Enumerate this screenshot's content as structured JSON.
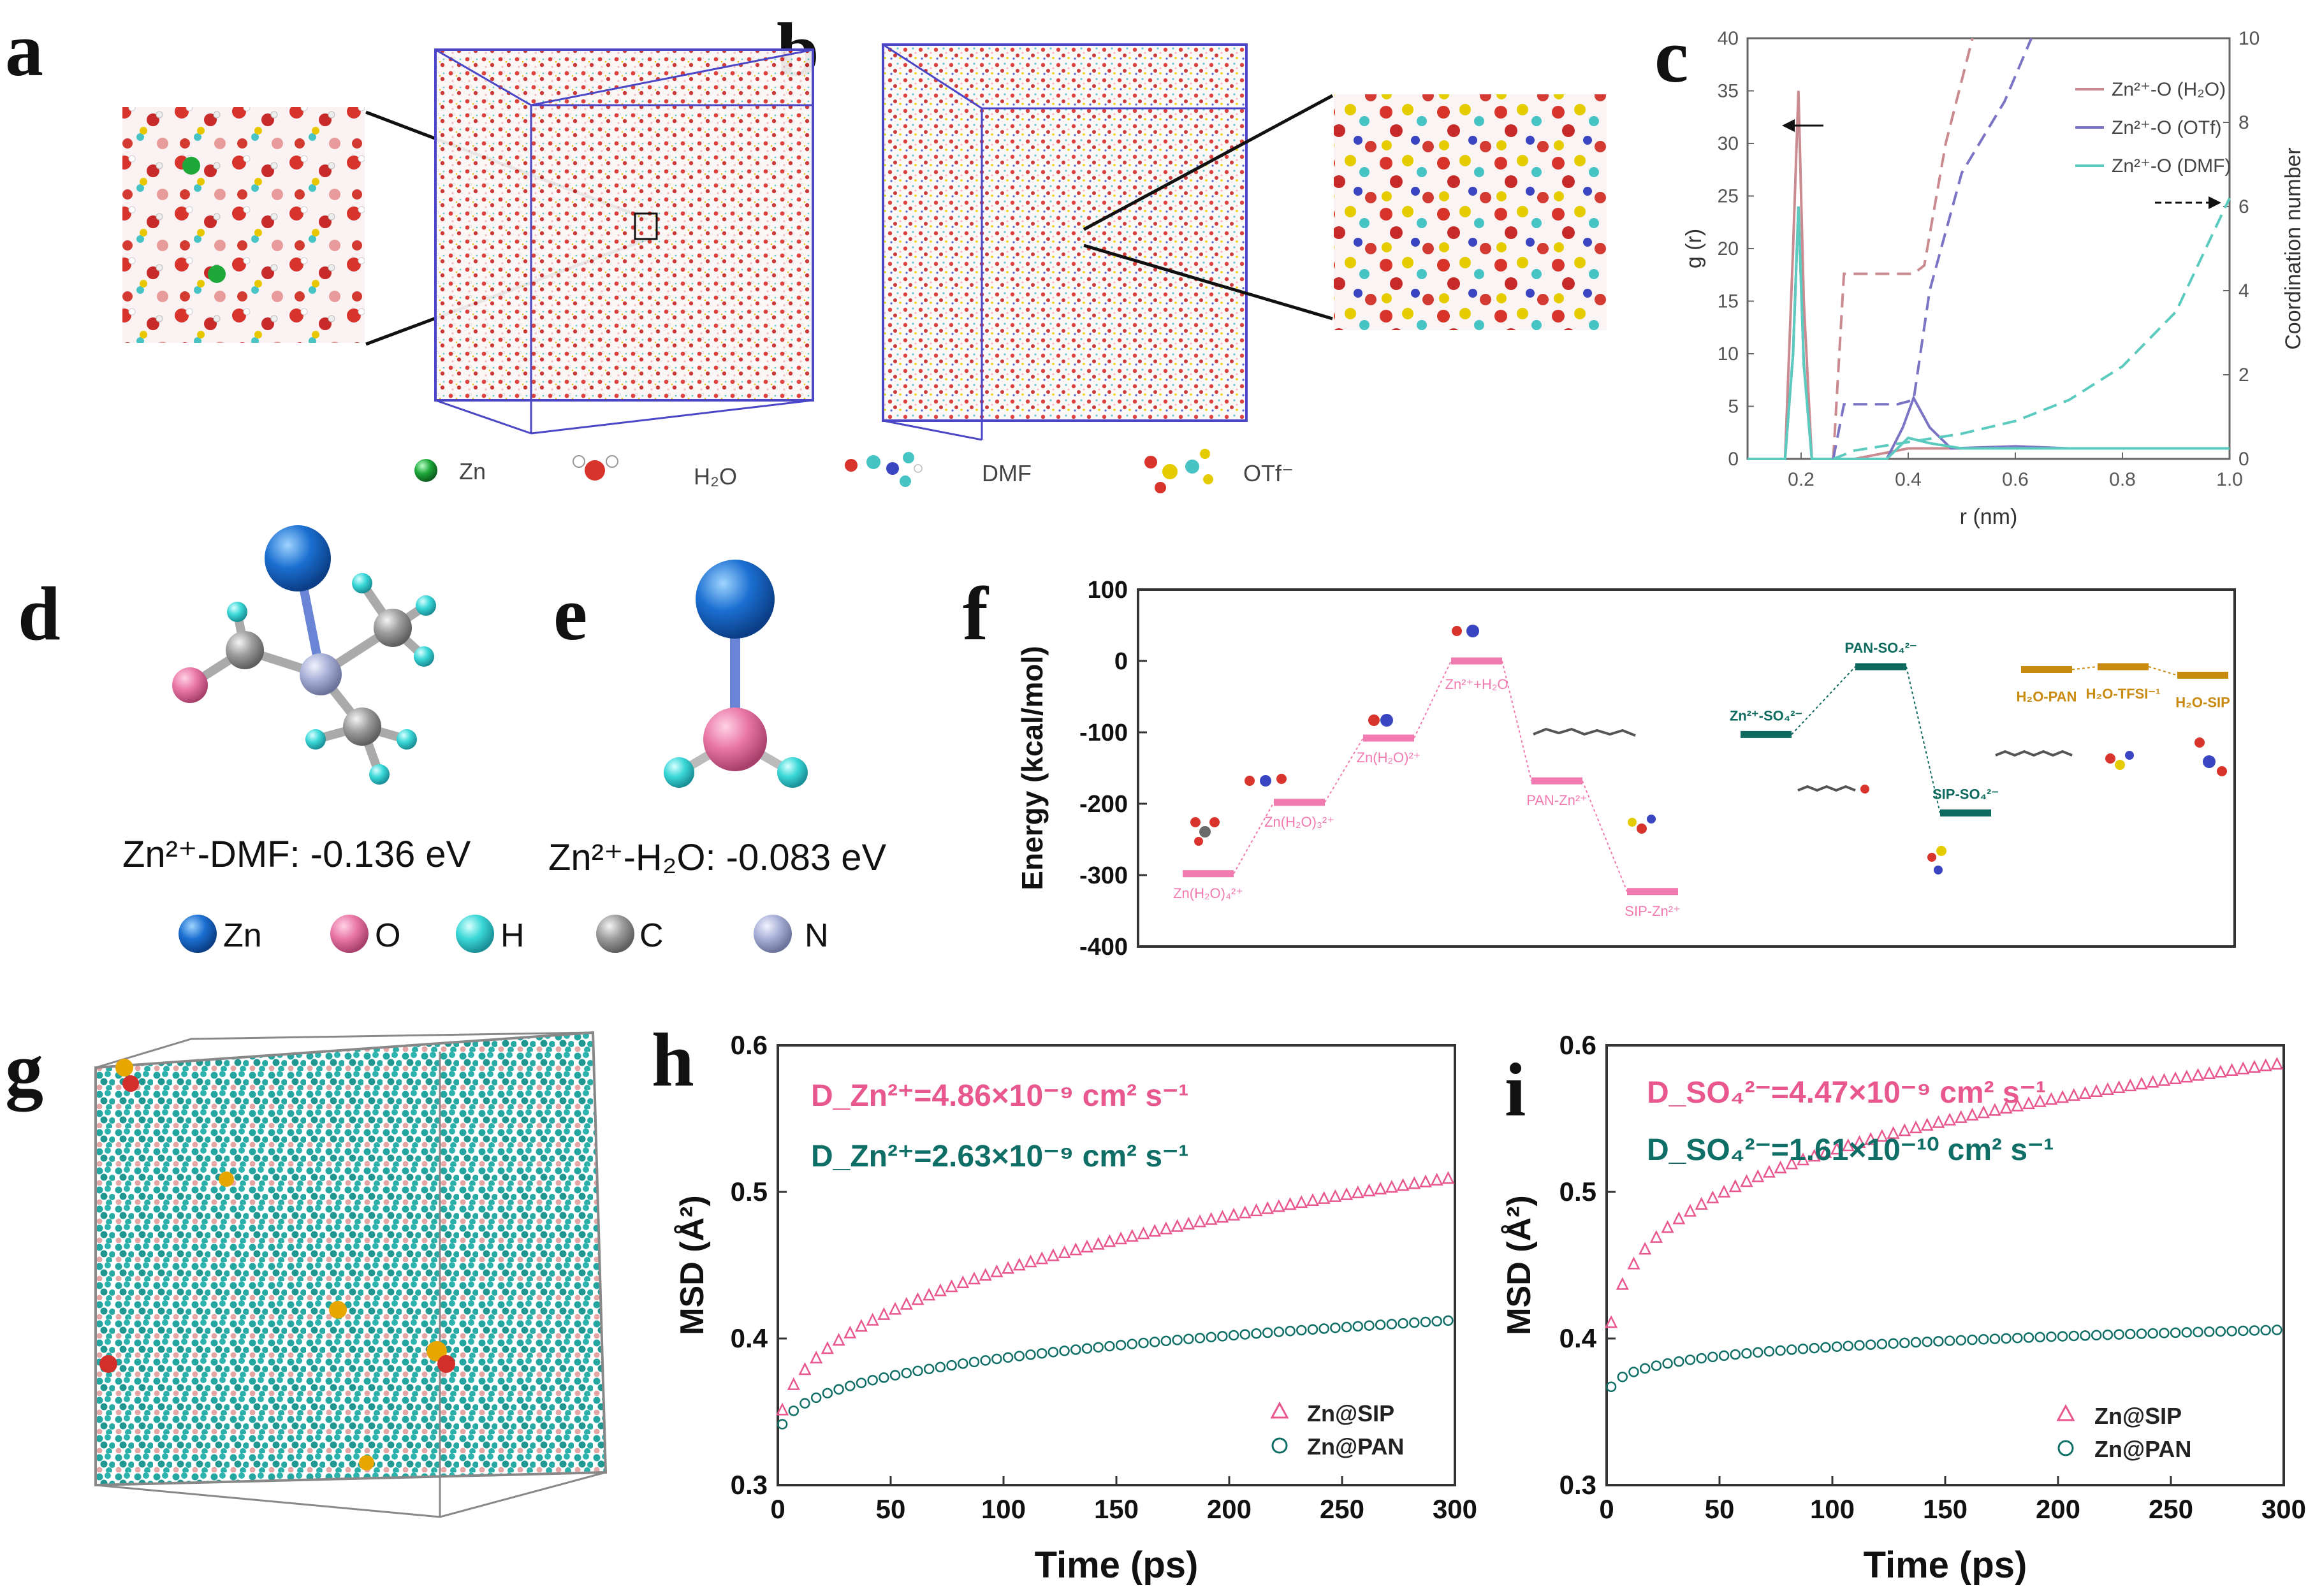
{
  "figure": {
    "panel_labels": [
      "a",
      "b",
      "c",
      "d",
      "e",
      "f",
      "g",
      "h",
      "i"
    ],
    "colors": {
      "pink": "#e8588f",
      "teal": "#0f6e66",
      "c_h2o": "#c98b8f",
      "c_otf": "#7b74c4",
      "c_dmf": "#5ccbbf",
      "energy_pink": "#f17ab0",
      "energy_teal": "#0e6a5e",
      "energy_gold": "#c98a10",
      "zn_blue": "#1b6fd1",
      "o_pink": "#e977a6",
      "h_cyan": "#3ad7d7",
      "c_gray": "#9c9c9c",
      "n_lav": "#a7afd6"
    }
  },
  "legend_ab": {
    "items": [
      {
        "label": "Zn",
        "icon": "zn-sphere-icon"
      },
      {
        "label": "H₂O",
        "icon": "water-molecule-icon"
      },
      {
        "label": "DMF",
        "icon": "dmf-molecule-icon"
      },
      {
        "label": "OTf⁻",
        "icon": "otf-molecule-icon"
      }
    ]
  },
  "panel_d": {
    "caption": "Zn²⁺-DMF: -0.136 eV"
  },
  "panel_e": {
    "caption": "Zn²⁺-H₂O: -0.083 eV"
  },
  "atom_legend": {
    "items": [
      {
        "label": "Zn"
      },
      {
        "label": "O"
      },
      {
        "label": "H"
      },
      {
        "label": "C"
      },
      {
        "label": "N"
      }
    ]
  },
  "chart_data": [
    {
      "id": "c",
      "type": "line",
      "xlabel": "r (nm)",
      "ylabel": "g (r)",
      "y2label": "Coordination number",
      "xlim": [
        0.1,
        1.0
      ],
      "ylim": [
        0,
        40
      ],
      "y2lim": [
        0,
        10
      ],
      "xticks": [
        "0.2",
        "0.4",
        "0.6",
        "0.8",
        "1.0"
      ],
      "yticks": [
        "0",
        "5",
        "10",
        "15",
        "20",
        "25",
        "30",
        "35",
        "40"
      ],
      "y2ticks": [
        "0",
        "2",
        "4",
        "6",
        "8",
        "10"
      ],
      "legend": [
        "Zn²⁺-O (H₂O)",
        "Zn²⁺-O (OTf)",
        "Zn²⁺-O (DMF)"
      ],
      "series": [
        {
          "name": "Zn²⁺-O (H₂O)",
          "axis": "left",
          "x": [
            0.1,
            0.17,
            0.185,
            0.195,
            0.205,
            0.22,
            0.3,
            0.4,
            0.5,
            0.6,
            0.7,
            0.8,
            1.0
          ],
          "y": [
            0,
            0,
            20,
            35,
            15,
            0,
            0,
            1,
            1,
            1,
            1,
            1,
            1
          ]
        },
        {
          "name": "Zn²⁺-O (OTf)",
          "axis": "left",
          "x": [
            0.1,
            0.17,
            0.185,
            0.195,
            0.205,
            0.22,
            0.36,
            0.39,
            0.41,
            0.44,
            0.48,
            0.6,
            0.7,
            1.0
          ],
          "y": [
            0,
            0,
            10,
            24,
            9,
            0,
            0,
            3,
            5.8,
            3,
            1,
            1.2,
            1,
            1
          ]
        },
        {
          "name": "Zn²⁺-O (DMF)",
          "axis": "left",
          "x": [
            0.1,
            0.17,
            0.185,
            0.195,
            0.205,
            0.22,
            0.36,
            0.4,
            0.44,
            0.5,
            0.6,
            0.7,
            1.0
          ],
          "y": [
            0,
            0,
            10,
            24,
            9,
            0,
            0,
            2,
            1.5,
            1,
            1,
            1,
            1
          ]
        },
        {
          "name": "CN (H₂O)",
          "axis": "right",
          "style": "dashed",
          "x": [
            0.26,
            0.28,
            0.41,
            0.43,
            0.47,
            0.52
          ],
          "y": [
            0,
            4.4,
            4.4,
            4.6,
            7.5,
            10
          ]
        },
        {
          "name": "CN (OTf)",
          "axis": "right",
          "style": "dashed",
          "x": [
            0.26,
            0.28,
            0.38,
            0.41,
            0.44,
            0.5,
            0.58,
            0.63
          ],
          "y": [
            0,
            1.3,
            1.3,
            1.4,
            4,
            6.8,
            8.5,
            10
          ]
        },
        {
          "name": "CN (DMF)",
          "axis": "right",
          "style": "dashed",
          "x": [
            0.26,
            0.3,
            0.4,
            0.5,
            0.6,
            0.7,
            0.8,
            0.9,
            1.0
          ],
          "y": [
            0,
            0.2,
            0.4,
            0.6,
            0.9,
            1.4,
            2.2,
            3.5,
            6.2
          ]
        }
      ]
    },
    {
      "id": "f",
      "type": "energy-diagram",
      "ylabel": "Energy (kcal/mol)",
      "ylim": [
        -400,
        100
      ],
      "yticks": [
        "100",
        "0",
        "-100",
        "-200",
        "-300",
        "-400"
      ],
      "levels": [
        {
          "label": "Zn(H₂O)₄²⁺",
          "value": -298,
          "group": "pink"
        },
        {
          "label": "Zn(H₂O)₃²⁺",
          "value": -198,
          "group": "pink"
        },
        {
          "label": "Zn(H₂O)²⁺",
          "value": -108,
          "group": "pink"
        },
        {
          "label": "Zn²⁺+H₂O",
          "value": 0,
          "group": "pink"
        },
        {
          "label": "PAN-Zn²⁺",
          "value": -168,
          "group": "pink"
        },
        {
          "label": "SIP-Zn²⁺",
          "value": -323,
          "group": "pink"
        },
        {
          "label": "Zn²⁺-SO₄²⁻",
          "value": -103,
          "group": "teal"
        },
        {
          "label": "PAN-SO₄²⁻",
          "value": -8,
          "group": "teal"
        },
        {
          "label": "SIP-SO₄²⁻",
          "value": -213,
          "group": "teal"
        },
        {
          "label": "H₂O-PAN",
          "value": -12,
          "group": "gold"
        },
        {
          "label": "H₂O-TFSI⁻¹",
          "value": -8,
          "group": "gold"
        },
        {
          "label": "H₂O-SIP",
          "value": -20,
          "group": "gold"
        }
      ]
    },
    {
      "id": "h",
      "type": "scatter",
      "xlabel": "Time (ps)",
      "ylabel": "MSD (Å²)",
      "xlim": [
        0,
        300
      ],
      "ylim": [
        0.3,
        0.6
      ],
      "xticks": [
        "0",
        "50",
        "100",
        "150",
        "200",
        "250",
        "300"
      ],
      "yticks": [
        "0.3",
        "0.4",
        "0.5",
        "0.6"
      ],
      "annotations": [
        "D_Zn²⁺=4.86×10⁻⁹ cm² s⁻¹",
        "D_Zn²⁺=2.63×10⁻⁹ cm² s⁻¹"
      ],
      "series": [
        {
          "name": "Zn@SIP",
          "marker": "triangle",
          "model": {
            "a": 0.322,
            "b": 0.0225,
            "p": 0.372
          }
        },
        {
          "name": "Zn@PAN",
          "marker": "circle",
          "model": {
            "a": 0.322,
            "b": 0.0158,
            "p": 0.306
          }
        }
      ]
    },
    {
      "id": "i",
      "type": "scatter",
      "xlabel": "Time (ps)",
      "ylabel": "MSD (Å²)",
      "xlim": [
        0,
        300
      ],
      "ylim": [
        0.3,
        0.6
      ],
      "xticks": [
        "0",
        "50",
        "100",
        "150",
        "200",
        "250",
        "300"
      ],
      "yticks": [
        "0.3",
        "0.4",
        "0.5",
        "0.6"
      ],
      "annotations": [
        "D_SO₄²⁻=4.47×10⁻⁹ cm² s⁻¹",
        "D_SO₄²⁻=1.61×10⁻¹⁰ cm² s⁻¹"
      ],
      "series": [
        {
          "name": "Zn@SIP",
          "marker": "triangle",
          "model": {
            "a": 0.34,
            "b": 0.0595,
            "p": 0.25
          }
        },
        {
          "name": "Zn@PAN",
          "marker": "circle",
          "model": {
            "a": 0.34,
            "b": 0.0239,
            "p": 0.178
          }
        }
      ]
    }
  ]
}
